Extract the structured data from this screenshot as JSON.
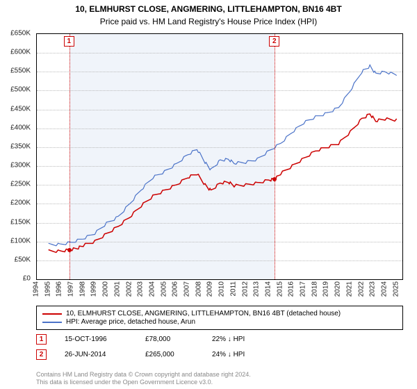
{
  "title": "10, ELMHURST CLOSE, ANGMERING, LITTLEHAMPTON, BN16 4BT",
  "subtitle": "Price paid vs. HM Land Registry's House Price Index (HPI)",
  "chart": {
    "type": "line",
    "background_color": "#ffffff",
    "shaded_color": "#f0f4fa",
    "grid_color": "#bbbbbb",
    "border_color": "#000000",
    "x_min": 1994,
    "x_max": 2025.5,
    "x_ticks": [
      1994,
      1995,
      1996,
      1997,
      1998,
      1999,
      2000,
      2001,
      2002,
      2003,
      2004,
      2005,
      2006,
      2007,
      2008,
      2009,
      2010,
      2011,
      2012,
      2013,
      2014,
      2015,
      2016,
      2017,
      2018,
      2019,
      2020,
      2021,
      2022,
      2023,
      2024,
      2025
    ],
    "y_min": 0,
    "y_max": 650000,
    "y_ticks": [
      0,
      50000,
      100000,
      150000,
      200000,
      250000,
      300000,
      350000,
      400000,
      450000,
      500000,
      550000,
      600000,
      650000
    ],
    "y_tick_labels": [
      "£0",
      "£50K",
      "£100K",
      "£150K",
      "£200K",
      "£250K",
      "£300K",
      "£350K",
      "£400K",
      "£450K",
      "£500K",
      "£550K",
      "£600K",
      "£650K"
    ],
    "shaded_x_start": 1996.8,
    "shaded_x_end": 2014.5,
    "title_fontsize": 12,
    "tick_fontsize": 10,
    "series": [
      {
        "name": "10, ELMHURST CLOSE, ANGMERING, LITTLEHAMPTON, BN16 4BT (detached house)",
        "color": "#cc0000",
        "line_width": 1.5,
        "data": [
          [
            1995.0,
            75000
          ],
          [
            1996.0,
            74000
          ],
          [
            1996.8,
            78000
          ],
          [
            1997.5,
            82000
          ],
          [
            1998.0,
            90000
          ],
          [
            1999.0,
            100000
          ],
          [
            2000.0,
            120000
          ],
          [
            2001.0,
            140000
          ],
          [
            2002.0,
            165000
          ],
          [
            2003.0,
            195000
          ],
          [
            2004.0,
            220000
          ],
          [
            2005.0,
            235000
          ],
          [
            2006.0,
            250000
          ],
          [
            2007.0,
            270000
          ],
          [
            2007.8,
            280000
          ],
          [
            2008.5,
            250000
          ],
          [
            2009.0,
            235000
          ],
          [
            2009.8,
            255000
          ],
          [
            2010.5,
            258000
          ],
          [
            2011.0,
            248000
          ],
          [
            2012.0,
            250000
          ],
          [
            2013.0,
            255000
          ],
          [
            2014.0,
            263000
          ],
          [
            2014.5,
            265000
          ],
          [
            2015.0,
            280000
          ],
          [
            2016.0,
            300000
          ],
          [
            2017.0,
            320000
          ],
          [
            2018.0,
            340000
          ],
          [
            2019.0,
            350000
          ],
          [
            2020.0,
            360000
          ],
          [
            2021.0,
            390000
          ],
          [
            2022.0,
            425000
          ],
          [
            2022.7,
            438000
          ],
          [
            2023.2,
            420000
          ],
          [
            2024.0,
            425000
          ],
          [
            2025.0,
            422000
          ]
        ]
      },
      {
        "name": "HPI: Average price, detached house, Arun",
        "color": "#4a72c8",
        "line_width": 1.2,
        "data": [
          [
            1995.0,
            92000
          ],
          [
            1996.0,
            92000
          ],
          [
            1997.0,
            98000
          ],
          [
            1998.0,
            108000
          ],
          [
            1999.0,
            122000
          ],
          [
            2000.0,
            148000
          ],
          [
            2001.0,
            165000
          ],
          [
            2002.0,
            200000
          ],
          [
            2003.0,
            238000
          ],
          [
            2004.0,
            270000
          ],
          [
            2005.0,
            285000
          ],
          [
            2006.0,
            305000
          ],
          [
            2007.0,
            330000
          ],
          [
            2007.8,
            345000
          ],
          [
            2008.5,
            310000
          ],
          [
            2009.0,
            290000
          ],
          [
            2009.8,
            315000
          ],
          [
            2010.5,
            318000
          ],
          [
            2011.0,
            308000
          ],
          [
            2012.0,
            310000
          ],
          [
            2013.0,
            318000
          ],
          [
            2014.0,
            340000
          ],
          [
            2015.0,
            360000
          ],
          [
            2016.0,
            390000
          ],
          [
            2017.0,
            415000
          ],
          [
            2018.0,
            430000
          ],
          [
            2019.0,
            440000
          ],
          [
            2020.0,
            455000
          ],
          [
            2021.0,
            500000
          ],
          [
            2022.0,
            550000
          ],
          [
            2022.7,
            565000
          ],
          [
            2023.2,
            545000
          ],
          [
            2024.0,
            550000
          ],
          [
            2025.0,
            542000
          ]
        ]
      }
    ],
    "markers": [
      {
        "num": "1",
        "x": 1996.8,
        "y": 78000,
        "color": "#cc0000"
      },
      {
        "num": "2",
        "x": 2014.5,
        "y": 265000,
        "color": "#cc0000"
      }
    ]
  },
  "legend": {
    "items": [
      {
        "color": "#cc0000",
        "label": "10, ELMHURST CLOSE, ANGMERING, LITTLEHAMPTON, BN16 4BT (detached house)"
      },
      {
        "color": "#4a72c8",
        "label": "HPI: Average price, detached house, Arun"
      }
    ]
  },
  "annotations": [
    {
      "num": "1",
      "color": "#cc0000",
      "date": "15-OCT-1996",
      "price": "£78,000",
      "delta": "22% ↓ HPI"
    },
    {
      "num": "2",
      "color": "#cc0000",
      "date": "26-JUN-2014",
      "price": "£265,000",
      "delta": "24% ↓ HPI"
    }
  ],
  "credit_line1": "Contains HM Land Registry data © Crown copyright and database right 2024.",
  "credit_line2": "This data is licensed under the Open Government Licence v3.0."
}
